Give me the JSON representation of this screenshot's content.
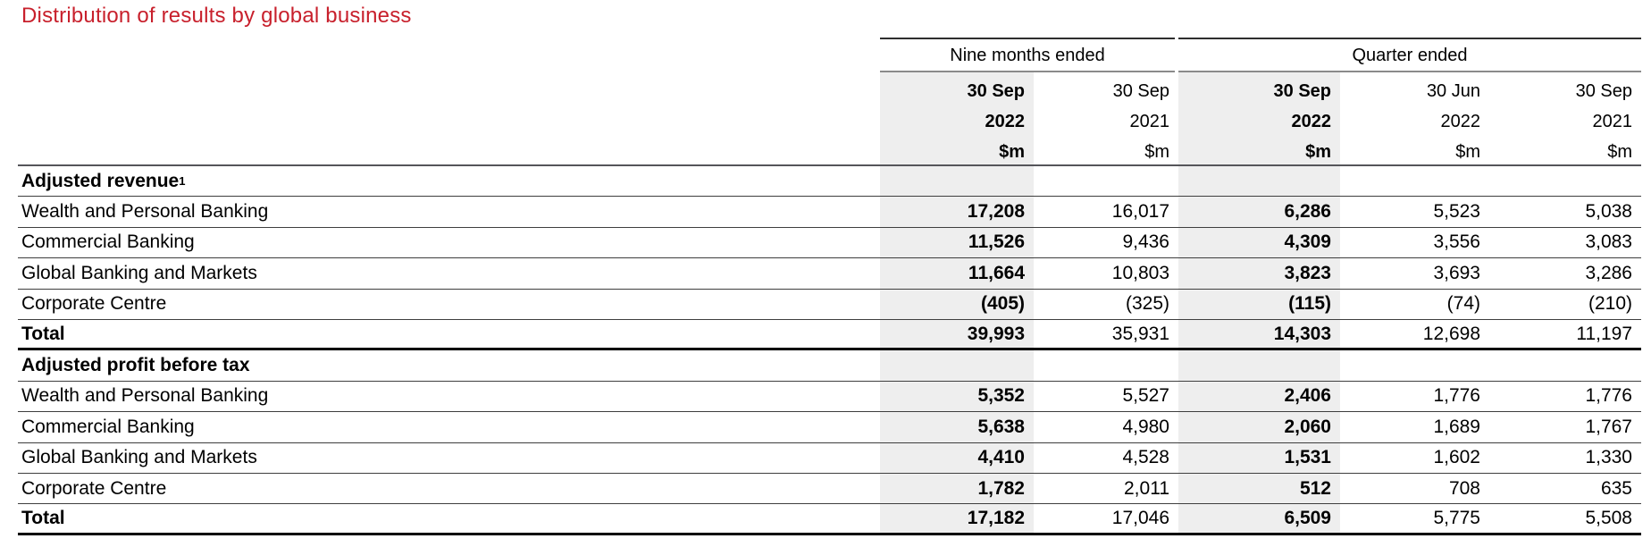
{
  "title": "Distribution of results by global business",
  "colors": {
    "title_red": "#c8202c",
    "column_shade": "#eeeeee"
  },
  "table": {
    "col_groups": [
      {
        "label": "Nine months ended",
        "span": 2
      },
      {
        "label": "Quarter ended",
        "span": 3
      }
    ],
    "columns": [
      {
        "date": "30 Sep",
        "year": "2022",
        "unit": "$m",
        "emphasis": true
      },
      {
        "date": "30 Sep",
        "year": "2021",
        "unit": "$m",
        "emphasis": false
      },
      {
        "date": "30 Sep",
        "year": "2022",
        "unit": "$m",
        "emphasis": true
      },
      {
        "date": "30 Jun",
        "year": "2022",
        "unit": "$m",
        "emphasis": false
      },
      {
        "date": "30 Sep",
        "year": "2021",
        "unit": "$m",
        "emphasis": false
      }
    ],
    "sections": [
      {
        "header": "Adjusted revenue",
        "header_superscript": "1",
        "rows": [
          {
            "label": "Wealth and Personal Banking",
            "values": [
              "17,208",
              "16,017",
              "6,286",
              "5,523",
              "5,038"
            ]
          },
          {
            "label": "Commercial Banking",
            "values": [
              "11,526",
              "9,436",
              "4,309",
              "3,556",
              "3,083"
            ]
          },
          {
            "label": "Global Banking and Markets",
            "values": [
              "11,664",
              "10,803",
              "3,823",
              "3,693",
              "3,286"
            ]
          },
          {
            "label": "Corporate Centre",
            "values": [
              "(405)",
              "(325)",
              "(115)",
              "(74)",
              "(210)"
            ]
          }
        ],
        "total": {
          "label": "Total",
          "values": [
            "39,993",
            "35,931",
            "14,303",
            "12,698",
            "11,197"
          ]
        }
      },
      {
        "header": "Adjusted profit before tax",
        "header_superscript": "",
        "rows": [
          {
            "label": "Wealth and Personal Banking",
            "values": [
              "5,352",
              "5,527",
              "2,406",
              "1,776",
              "1,776"
            ]
          },
          {
            "label": "Commercial Banking",
            "values": [
              "5,638",
              "4,980",
              "2,060",
              "1,689",
              "1,767"
            ]
          },
          {
            "label": "Global Banking and Markets",
            "values": [
              "4,410",
              "4,528",
              "1,531",
              "1,602",
              "1,330"
            ]
          },
          {
            "label": "Corporate Centre",
            "values": [
              "1,782",
              "2,011",
              "512",
              "708",
              "635"
            ]
          }
        ],
        "total": {
          "label": "Total",
          "values": [
            "17,182",
            "17,046",
            "6,509",
            "5,775",
            "5,508"
          ]
        }
      }
    ]
  }
}
